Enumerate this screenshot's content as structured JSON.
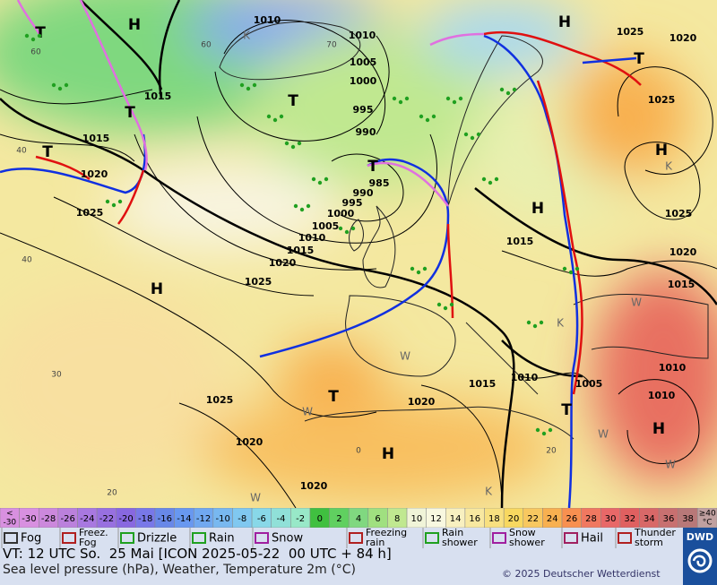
{
  "map": {
    "isobar_labels": [
      "1010",
      "1010",
      "1005",
      "1000",
      "995",
      "990",
      "985",
      "990",
      "995",
      "1000",
      "1005",
      "1010",
      "1015",
      "1020",
      "1025",
      "1015",
      "1015",
      "1020",
      "1025",
      "1025",
      "1020",
      "1020",
      "1020",
      "1015",
      "1010",
      "1005",
      "1010",
      "1010",
      "1015",
      "1020",
      "1025",
      "1025",
      "1025",
      "1020",
      "1015"
    ],
    "centers": [
      "H",
      "T",
      "T",
      "T",
      "T",
      "T",
      "H",
      "H",
      "H",
      "H",
      "T",
      "H",
      "H",
      "T",
      "T"
    ],
    "markers": [
      "K",
      "K",
      "K",
      "K",
      "W",
      "W",
      "W",
      "W",
      "W",
      "W"
    ],
    "temperature_labels": [
      "60",
      "40",
      "40",
      "30",
      "20",
      "0",
      "20",
      "60",
      "70"
    ]
  },
  "temperature_scale": {
    "below": [
      "<",
      "-30"
    ],
    "steps": [
      {
        "label": "-30",
        "color": "#d890e0"
      },
      {
        "label": "-28",
        "color": "#cc88dc"
      },
      {
        "label": "-26",
        "color": "#bb80dc"
      },
      {
        "label": "-24",
        "color": "#a878e0"
      },
      {
        "label": "-22",
        "color": "#9870e0"
      },
      {
        "label": "-20",
        "color": "#8868e0"
      },
      {
        "label": "-18",
        "color": "#7878e8"
      },
      {
        "label": "-16",
        "color": "#6888e8"
      },
      {
        "label": "-14",
        "color": "#6898f0"
      },
      {
        "label": "-12",
        "color": "#70a8f0"
      },
      {
        "label": "-10",
        "color": "#78b8f0"
      },
      {
        "label": "-8",
        "color": "#80c8f0"
      },
      {
        "label": "-6",
        "color": "#88d8e8"
      },
      {
        "label": "-4",
        "color": "#90e0d8"
      },
      {
        "label": "-2",
        "color": "#98e8c8"
      },
      {
        "label": "0",
        "color": "#40c040"
      },
      {
        "label": "2",
        "color": "#60d060"
      },
      {
        "label": "4",
        "color": "#80d880"
      },
      {
        "label": "6",
        "color": "#a0e080"
      },
      {
        "label": "8",
        "color": "#c0e890"
      },
      {
        "label": "10",
        "color": "#f0f4d8"
      },
      {
        "label": "12",
        "color": "#f8f8e0"
      },
      {
        "label": "14",
        "color": "#f8f0c0"
      },
      {
        "label": "16",
        "color": "#f8e8a0"
      },
      {
        "label": "18",
        "color": "#f8e080"
      },
      {
        "label": "20",
        "color": "#f8d860"
      },
      {
        "label": "22",
        "color": "#f8c860"
      },
      {
        "label": "24",
        "color": "#f8b050"
      },
      {
        "label": "26",
        "color": "#f89050"
      },
      {
        "label": "28",
        "color": "#f07860"
      },
      {
        "label": "30",
        "color": "#e86868"
      },
      {
        "label": "32",
        "color": "#e06060"
      },
      {
        "label": "34",
        "color": "#d86868"
      },
      {
        "label": "36",
        "color": "#c87070"
      },
      {
        "label": "38",
        "color": "#b87878"
      }
    ],
    "above": [
      "≥40",
      "°C"
    ],
    "above_color": "#c0a0a0"
  },
  "weather_legend": [
    [
      "Fog"
    ],
    [
      "Freez.",
      "Fog"
    ],
    [
      "Drizzle"
    ],
    [
      "Rain"
    ],
    [
      "Snow"
    ],
    [
      "Freezing",
      "rain"
    ],
    [
      "Rain",
      "shower"
    ],
    [
      "Snow",
      "shower"
    ],
    [
      "Hail"
    ],
    [
      "Thunder",
      "storm"
    ]
  ],
  "footer": {
    "valid_time": "VT: 12 UTC So.  25 Mai [ICON 2025-05-22  00 UTC + 84 h]",
    "description": "Sea level pressure (hPa), Weather, Temperature 2m (°C)",
    "copyright": "© 2025 Deutscher Wetterdienst",
    "logo": "DWD"
  }
}
